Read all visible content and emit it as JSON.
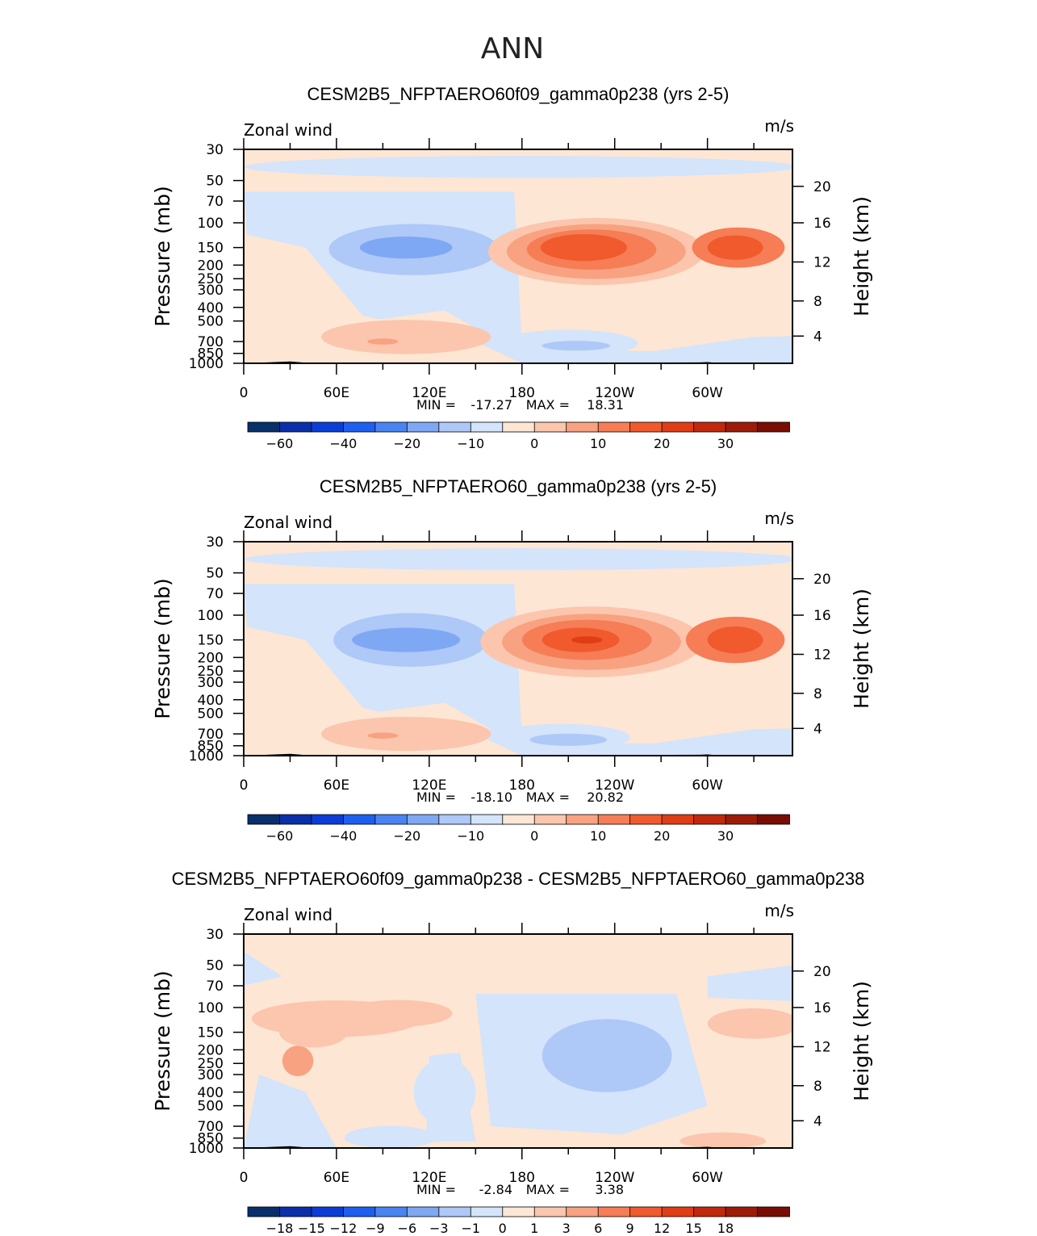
{
  "page_title": "ANN",
  "colors": {
    "neg": [
      "#08306b",
      "#0a2faa",
      "#0b3ed8",
      "#1d5ff0",
      "#4a84f2",
      "#7ea8f4",
      "#aec8f7",
      "#d3e4fb"
    ],
    "zero": "#fde6d4",
    "pos": [
      "#fbc6ad",
      "#f8a281",
      "#f67d55",
      "#f15a2d",
      "#e03d16",
      "#c1280c",
      "#9e1b07",
      "#7a0d03"
    ],
    "terrain": "#000000"
  },
  "chart_data": [
    {
      "type": "contour",
      "title": "CESM2B5_NFPTAERO60f09_gamma0p238 (yrs 2-5)",
      "field_label": "Zonal wind",
      "units": "m/s",
      "ylabel": "Pressure (mb)",
      "y2label": "Height (km)",
      "x_ticks": [
        "0",
        "60E",
        "120E",
        "180",
        "120W",
        "60W"
      ],
      "y_ticks": [
        "30",
        "50",
        "70",
        "100",
        "150",
        "200",
        "250",
        "300",
        "400",
        "500",
        "700",
        "850",
        "1000"
      ],
      "y2_ticks": [
        "20",
        "16",
        "12",
        "8",
        "4"
      ],
      "stats": {
        "min_label": "MIN =",
        "min": "-17.27",
        "max_label": "MAX =",
        "max": "18.31"
      },
      "colorbar": {
        "levels": [
          -70,
          -60,
          -50,
          -40,
          -30,
          -20,
          -15,
          -10,
          -5,
          0,
          5,
          10,
          15,
          20,
          25,
          30,
          35
        ],
        "labels": [
          "-60",
          "-40",
          "-20",
          "-10",
          "0",
          "10",
          "20",
          "30"
        ]
      }
    },
    {
      "type": "contour",
      "title": "CESM2B5_NFPTAERO60_gamma0p238 (yrs 2-5)",
      "field_label": "Zonal wind",
      "units": "m/s",
      "ylabel": "Pressure (mb)",
      "y2label": "Height (km)",
      "x_ticks": [
        "0",
        "60E",
        "120E",
        "180",
        "120W",
        "60W"
      ],
      "y_ticks": [
        "30",
        "50",
        "70",
        "100",
        "150",
        "200",
        "250",
        "300",
        "400",
        "500",
        "700",
        "850",
        "1000"
      ],
      "y2_ticks": [
        "20",
        "16",
        "12",
        "8",
        "4"
      ],
      "stats": {
        "min_label": "MIN =",
        "min": "-18.10",
        "max_label": "MAX =",
        "max": "20.82"
      },
      "colorbar": {
        "levels": [
          -70,
          -60,
          -50,
          -40,
          -30,
          -20,
          -15,
          -10,
          -5,
          0,
          5,
          10,
          15,
          20,
          25,
          30,
          35
        ],
        "labels": [
          "-60",
          "-40",
          "-20",
          "-10",
          "0",
          "10",
          "20",
          "30"
        ]
      }
    },
    {
      "type": "contour",
      "title": "CESM2B5_NFPTAERO60f09_gamma0p238 - CESM2B5_NFPTAERO60_gamma0p238",
      "field_label": "Zonal wind",
      "units": "m/s",
      "ylabel": "Pressure (mb)",
      "y2label": "Height (km)",
      "x_ticks": [
        "0",
        "60E",
        "120E",
        "180",
        "120W",
        "60W"
      ],
      "y_ticks": [
        "30",
        "50",
        "70",
        "100",
        "150",
        "200",
        "250",
        "300",
        "400",
        "500",
        "700",
        "850",
        "1000"
      ],
      "y2_ticks": [
        "20",
        "16",
        "12",
        "8",
        "4"
      ],
      "stats": {
        "min_label": "MIN =",
        "min": "-2.84",
        "max_label": "MAX =",
        "max": "3.38"
      },
      "colorbar": {
        "levels": [
          -21,
          -18,
          -15,
          -12,
          -9,
          -6,
          -3,
          -1,
          0,
          1,
          3,
          6,
          9,
          12,
          15,
          18,
          21
        ],
        "labels": [
          "-18",
          "-15",
          "-12",
          "-9",
          "-6",
          "-3",
          "-1",
          "0",
          "1",
          "3",
          "6",
          "9",
          "12",
          "15",
          "18"
        ]
      }
    }
  ]
}
